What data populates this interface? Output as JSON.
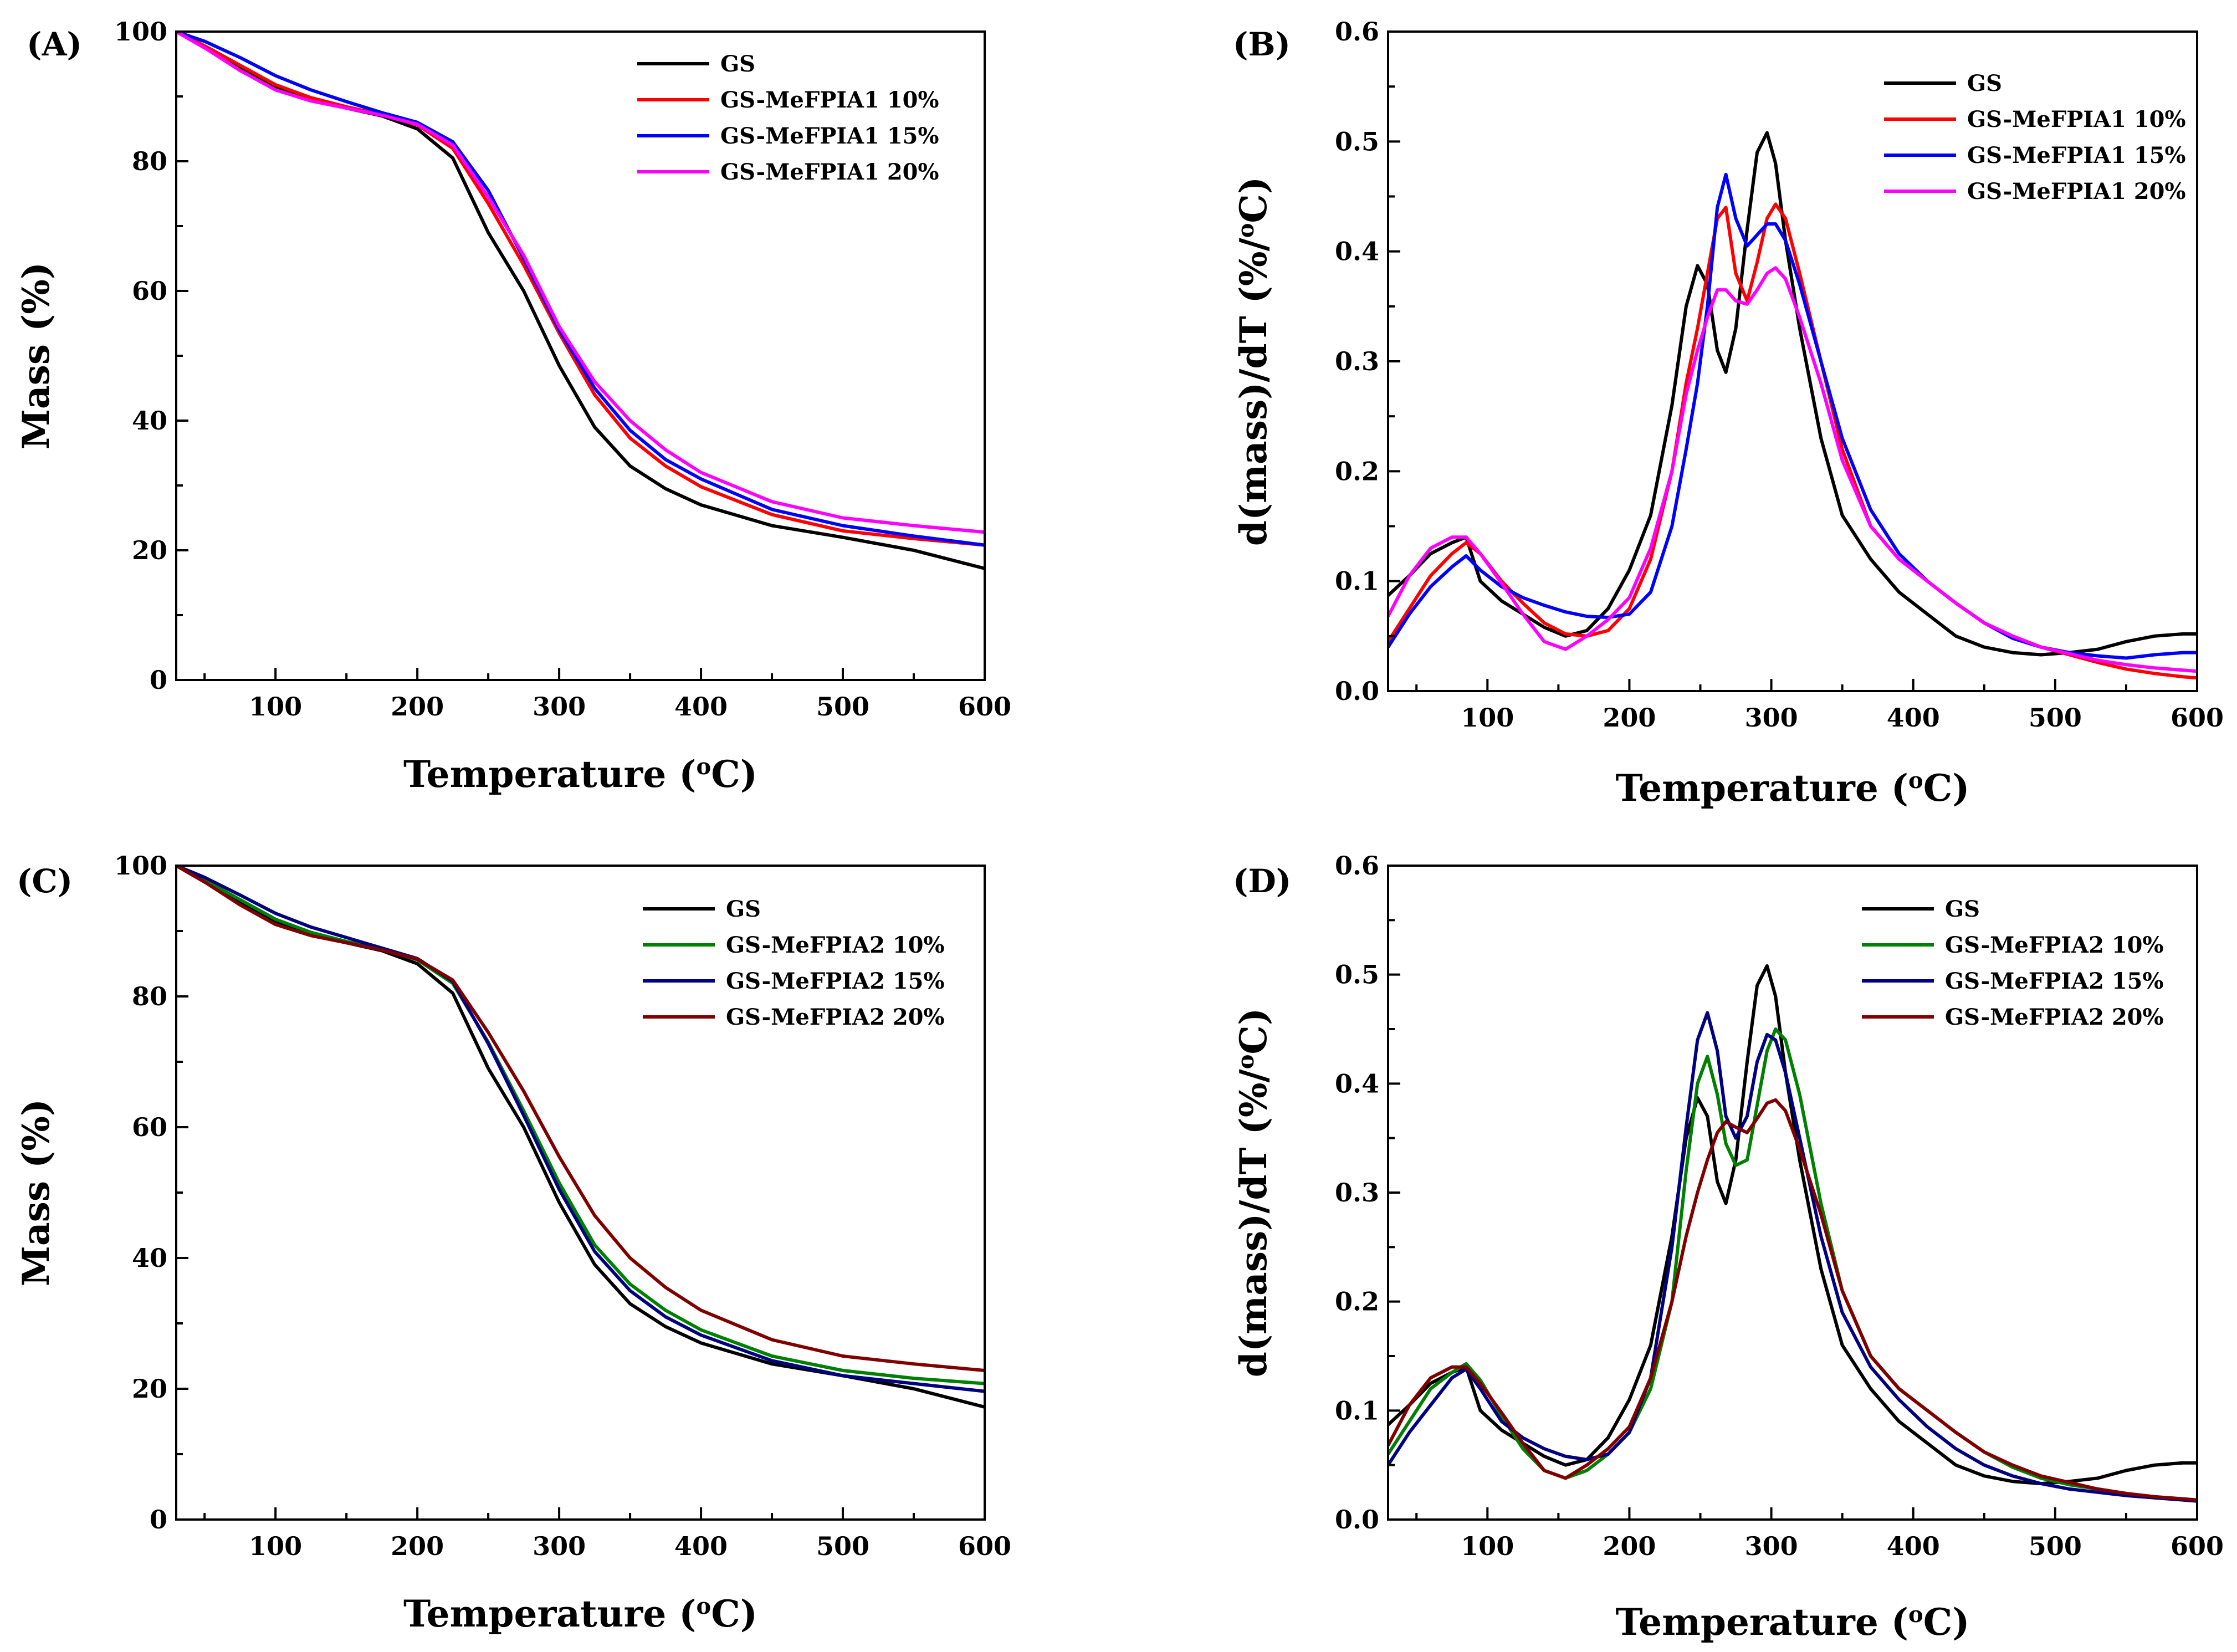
{
  "colors": {
    "GS": "#000000",
    "GS-MeFPIA1 10%": "#ff0000",
    "GS-MeFPIA1 15%": "#0000ff",
    "GS-MeFPIA1 20%": "#ff00ff",
    "GS-MeFPIA2 10%": "#008000",
    "GS-MeFPIA2 15%": "#000080",
    "GS-MeFPIA2 20%": "#800000"
  },
  "chart_data": [
    {
      "panel": "(A)",
      "type": "line",
      "xlabel": "Temperature (oC)",
      "ylabel": "Mass (%)",
      "xlim": [
        30,
        600
      ],
      "ylim": [
        0,
        100
      ],
      "xticks": [
        100,
        200,
        300,
        400,
        500,
        600
      ],
      "yticks": [
        0,
        20,
        40,
        60,
        80,
        100
      ],
      "x": [
        30,
        50,
        75,
        100,
        125,
        150,
        175,
        200,
        225,
        250,
        275,
        300,
        325,
        350,
        375,
        400,
        450,
        500,
        550,
        600
      ],
      "series": [
        {
          "name": "GS",
          "values": [
            100,
            97.5,
            94.5,
            91.5,
            89.5,
            88.2,
            87,
            85,
            80.5,
            69,
            60,
            48.5,
            39,
            33,
            29.5,
            27,
            23.8,
            22,
            20,
            17.2
          ]
        },
        {
          "name": "GS-MeFPIA1 10%",
          "values": [
            100,
            97.8,
            94.8,
            91.8,
            89.8,
            88.4,
            87.2,
            85.6,
            82,
            73.5,
            64,
            53.5,
            44,
            37.3,
            33,
            29.8,
            25.5,
            23,
            21.8,
            20.8
          ]
        },
        {
          "name": "GS-MeFPIA1 15%",
          "values": [
            100,
            98.5,
            96,
            93.2,
            91,
            89.2,
            87.5,
            86,
            83,
            75.5,
            65,
            54,
            45,
            38.5,
            34,
            31,
            26.3,
            23.8,
            22.2,
            20.8
          ]
        },
        {
          "name": "GS-MeFPIA1 20%",
          "values": [
            100,
            97.5,
            94,
            91,
            89.3,
            88.2,
            87.1,
            85.7,
            82.5,
            74.5,
            65.5,
            54.5,
            46,
            40,
            35.5,
            32,
            27.5,
            25,
            23.8,
            22.8
          ]
        }
      ]
    },
    {
      "panel": "(B)",
      "type": "line",
      "xlabel": "Temperature (oC)",
      "ylabel": "d(mass)/dT (%/oC)",
      "xlim": [
        30,
        600
      ],
      "ylim": [
        0,
        0.6
      ],
      "xticks": [
        100,
        200,
        300,
        400,
        500,
        600
      ],
      "yticks": [
        0.0,
        0.1,
        0.2,
        0.3,
        0.4,
        0.5,
        0.6
      ],
      "x": [
        30,
        45,
        60,
        75,
        85,
        95,
        110,
        125,
        140,
        155,
        170,
        185,
        200,
        215,
        230,
        240,
        248,
        255,
        262,
        268,
        275,
        283,
        290,
        297,
        303,
        310,
        320,
        335,
        350,
        370,
        390,
        410,
        430,
        450,
        470,
        490,
        510,
        530,
        550,
        570,
        590,
        600
      ],
      "series": [
        {
          "name": "GS",
          "values": [
            0.087,
            0.105,
            0.125,
            0.135,
            0.14,
            0.1,
            0.082,
            0.07,
            0.058,
            0.05,
            0.055,
            0.075,
            0.11,
            0.16,
            0.26,
            0.35,
            0.387,
            0.37,
            0.31,
            0.29,
            0.33,
            0.42,
            0.49,
            0.508,
            0.48,
            0.41,
            0.33,
            0.23,
            0.16,
            0.12,
            0.09,
            0.07,
            0.05,
            0.04,
            0.035,
            0.033,
            0.035,
            0.038,
            0.045,
            0.05,
            0.052,
            0.052
          ]
        },
        {
          "name": "GS-MeFPIA1 10%",
          "values": [
            0.045,
            0.075,
            0.105,
            0.125,
            0.135,
            0.125,
            0.1,
            0.08,
            0.062,
            0.052,
            0.05,
            0.055,
            0.075,
            0.12,
            0.2,
            0.28,
            0.33,
            0.38,
            0.43,
            0.44,
            0.38,
            0.355,
            0.39,
            0.43,
            0.443,
            0.43,
            0.38,
            0.3,
            0.22,
            0.15,
            0.12,
            0.1,
            0.08,
            0.062,
            0.05,
            0.04,
            0.033,
            0.026,
            0.02,
            0.016,
            0.013,
            0.012
          ]
        },
        {
          "name": "GS-MeFPIA1 15%",
          "values": [
            0.04,
            0.07,
            0.095,
            0.113,
            0.123,
            0.11,
            0.095,
            0.085,
            0.078,
            0.072,
            0.068,
            0.067,
            0.07,
            0.09,
            0.15,
            0.22,
            0.28,
            0.35,
            0.44,
            0.47,
            0.43,
            0.405,
            0.415,
            0.425,
            0.425,
            0.41,
            0.37,
            0.3,
            0.23,
            0.165,
            0.125,
            0.1,
            0.08,
            0.062,
            0.048,
            0.04,
            0.035,
            0.032,
            0.03,
            0.033,
            0.035,
            0.035
          ]
        },
        {
          "name": "GS-MeFPIA1 20%",
          "values": [
            0.068,
            0.105,
            0.13,
            0.14,
            0.14,
            0.125,
            0.098,
            0.07,
            0.045,
            0.038,
            0.05,
            0.065,
            0.085,
            0.13,
            0.2,
            0.27,
            0.31,
            0.34,
            0.365,
            0.365,
            0.355,
            0.352,
            0.365,
            0.38,
            0.385,
            0.375,
            0.34,
            0.28,
            0.21,
            0.15,
            0.12,
            0.1,
            0.08,
            0.062,
            0.05,
            0.04,
            0.034,
            0.028,
            0.024,
            0.021,
            0.019,
            0.018
          ]
        }
      ]
    },
    {
      "panel": "(C)",
      "type": "line",
      "xlabel": "Temperature (oC)",
      "ylabel": "Mass (%)",
      "xlim": [
        30,
        600
      ],
      "ylim": [
        0,
        100
      ],
      "xticks": [
        100,
        200,
        300,
        400,
        500,
        600
      ],
      "yticks": [
        0,
        20,
        40,
        60,
        80,
        100
      ],
      "x": [
        30,
        50,
        75,
        100,
        125,
        150,
        175,
        200,
        225,
        250,
        275,
        300,
        325,
        350,
        375,
        400,
        450,
        500,
        550,
        600
      ],
      "series": [
        {
          "name": "GS",
          "values": [
            100,
            97.5,
            94.5,
            91.5,
            89.5,
            88.2,
            87,
            85,
            80.5,
            69,
            60,
            48.5,
            39,
            33,
            29.5,
            27,
            23.8,
            22,
            20,
            17.2
          ]
        },
        {
          "name": "GS-MeFPIA2 10%",
          "values": [
            100,
            97.8,
            94.8,
            91.8,
            89.8,
            88.4,
            87.2,
            85.6,
            82,
            73,
            62.5,
            51.5,
            42,
            36,
            32,
            29,
            25,
            22.8,
            21.6,
            20.8
          ]
        },
        {
          "name": "GS-MeFPIA2 15%",
          "values": [
            100,
            98.2,
            95.5,
            92.7,
            90.6,
            89,
            87.4,
            85.8,
            82.3,
            72.8,
            61.8,
            50.5,
            41,
            35,
            31,
            28.2,
            24.3,
            22,
            20.8,
            19.6
          ]
        },
        {
          "name": "GS-MeFPIA2 20%",
          "values": [
            100,
            97.5,
            94,
            91,
            89.3,
            88.2,
            87.1,
            85.7,
            82.5,
            74.5,
            65.5,
            55.5,
            46.5,
            40,
            35.5,
            32,
            27.5,
            25,
            23.8,
            22.8
          ]
        }
      ]
    },
    {
      "panel": "(D)",
      "type": "line",
      "xlabel": "Temperature (oC)",
      "ylabel": "d(mass)/dT (%/oC)",
      "xlim": [
        30,
        600
      ],
      "ylim": [
        0,
        0.6
      ],
      "xticks": [
        100,
        200,
        300,
        400,
        500,
        600
      ],
      "yticks": [
        0.0,
        0.1,
        0.2,
        0.3,
        0.4,
        0.5,
        0.6
      ],
      "x": [
        30,
        45,
        60,
        75,
        85,
        95,
        110,
        125,
        140,
        155,
        170,
        185,
        200,
        215,
        230,
        240,
        248,
        255,
        262,
        268,
        275,
        283,
        290,
        297,
        303,
        310,
        320,
        335,
        350,
        370,
        390,
        410,
        430,
        450,
        470,
        490,
        510,
        530,
        550,
        570,
        590,
        600
      ],
      "series": [
        {
          "name": "GS",
          "values": [
            0.087,
            0.105,
            0.125,
            0.135,
            0.14,
            0.1,
            0.082,
            0.07,
            0.058,
            0.05,
            0.055,
            0.075,
            0.11,
            0.16,
            0.26,
            0.35,
            0.387,
            0.37,
            0.31,
            0.29,
            0.33,
            0.42,
            0.49,
            0.508,
            0.48,
            0.41,
            0.33,
            0.23,
            0.16,
            0.12,
            0.09,
            0.07,
            0.05,
            0.04,
            0.035,
            0.033,
            0.035,
            0.038,
            0.045,
            0.05,
            0.052,
            0.052
          ]
        },
        {
          "name": "GS-MeFPIA2 10%",
          "values": [
            0.06,
            0.09,
            0.12,
            0.135,
            0.143,
            0.128,
            0.095,
            0.065,
            0.045,
            0.038,
            0.045,
            0.06,
            0.08,
            0.12,
            0.2,
            0.32,
            0.4,
            0.425,
            0.39,
            0.345,
            0.325,
            0.33,
            0.38,
            0.43,
            0.45,
            0.44,
            0.39,
            0.29,
            0.21,
            0.15,
            0.12,
            0.1,
            0.08,
            0.062,
            0.048,
            0.038,
            0.032,
            0.028,
            0.024,
            0.02,
            0.018,
            0.017
          ]
        },
        {
          "name": "GS-MeFPIA2 15%",
          "values": [
            0.05,
            0.08,
            0.105,
            0.13,
            0.138,
            0.12,
            0.09,
            0.075,
            0.065,
            0.058,
            0.055,
            0.06,
            0.08,
            0.13,
            0.25,
            0.36,
            0.44,
            0.465,
            0.43,
            0.37,
            0.35,
            0.37,
            0.42,
            0.445,
            0.44,
            0.41,
            0.35,
            0.26,
            0.19,
            0.14,
            0.11,
            0.085,
            0.065,
            0.05,
            0.04,
            0.033,
            0.028,
            0.025,
            0.022,
            0.02,
            0.018,
            0.017
          ]
        },
        {
          "name": "GS-MeFPIA2 20%",
          "values": [
            0.068,
            0.105,
            0.13,
            0.14,
            0.14,
            0.125,
            0.098,
            0.07,
            0.045,
            0.038,
            0.05,
            0.065,
            0.085,
            0.13,
            0.2,
            0.26,
            0.3,
            0.33,
            0.355,
            0.365,
            0.36,
            0.355,
            0.368,
            0.382,
            0.385,
            0.375,
            0.34,
            0.28,
            0.21,
            0.15,
            0.12,
            0.1,
            0.08,
            0.062,
            0.05,
            0.04,
            0.034,
            0.028,
            0.024,
            0.021,
            0.019,
            0.018
          ]
        }
      ]
    }
  ]
}
